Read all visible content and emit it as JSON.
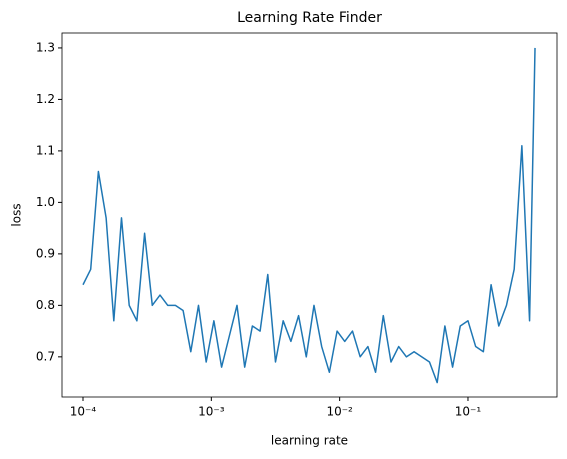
{
  "chart_data": {
    "type": "line",
    "title": "Learning Rate Finder",
    "x_label": "learning rate",
    "y_label": "loss",
    "log_x": true,
    "grid": false,
    "x": [
      0.0001,
      0.0001148,
      0.0001318,
      0.0001514,
      0.0001738,
      0.0001995,
      0.0002291,
      0.000263,
      0.000302,
      0.0003467,
      0.0003981,
      0.0004571,
      0.0005248,
      0.0006026,
      0.0006918,
      0.0007943,
      0.000912,
      0.001047,
      0.001202,
      0.00138,
      0.001585,
      0.00182,
      0.002089,
      0.002399,
      0.002754,
      0.003162,
      0.003631,
      0.004169,
      0.004786,
      0.005495,
      0.00631,
      0.007244,
      0.008318,
      0.00955,
      0.01096,
      0.01259,
      0.01445,
      0.0166,
      0.01905,
      0.02188,
      0.02512,
      0.02884,
      0.03311,
      0.03802,
      0.04365,
      0.05012,
      0.05754,
      0.06607,
      0.07586,
      0.0871,
      0.1,
      0.1148,
      0.1318,
      0.1514,
      0.1738,
      0.1995,
      0.2291,
      0.263,
      0.302,
      0.333
    ],
    "series": [
      {
        "name": "loss",
        "color": "#1f77b4",
        "values": [
          0.84,
          0.87,
          1.06,
          0.97,
          0.77,
          0.97,
          0.8,
          0.77,
          0.94,
          0.8,
          0.82,
          0.8,
          0.8,
          0.79,
          0.71,
          0.8,
          0.69,
          0.77,
          0.68,
          0.74,
          0.8,
          0.68,
          0.76,
          0.75,
          0.86,
          0.69,
          0.77,
          0.73,
          0.78,
          0.7,
          0.8,
          0.72,
          0.67,
          0.75,
          0.73,
          0.75,
          0.7,
          0.72,
          0.67,
          0.78,
          0.69,
          0.72,
          0.7,
          0.71,
          0.7,
          0.69,
          0.65,
          0.76,
          0.68,
          0.76,
          0.77,
          0.72,
          0.71,
          0.84,
          0.76,
          0.8,
          0.87,
          1.11,
          0.77,
          1.3
        ]
      }
    ],
    "xlim": [
      6.86e-05,
      0.494
    ],
    "ylim": [
      0.622,
      1.329
    ],
    "xticks": [
      {
        "value": 0.0001,
        "label": "10⁻⁴"
      },
      {
        "value": 0.001,
        "label": "10⁻³"
      },
      {
        "value": 0.01,
        "label": "10⁻²"
      },
      {
        "value": 0.1,
        "label": "10⁻¹"
      }
    ],
    "yticks": [
      0.7,
      0.8,
      0.9,
      {
        "value": 1.0,
        "label": "1.0"
      },
      1.1,
      1.2,
      1.3
    ]
  }
}
